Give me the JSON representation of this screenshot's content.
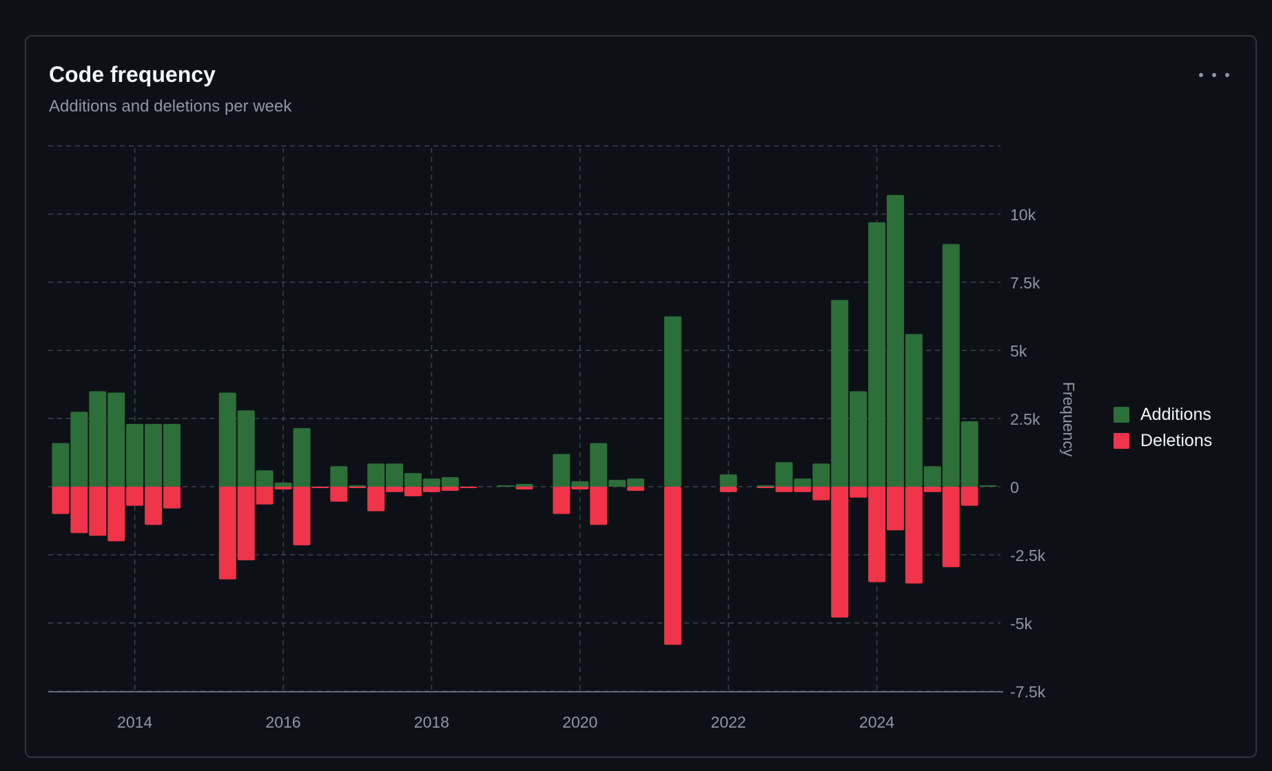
{
  "header": {
    "title": "Code frequency",
    "subtitle": "Additions and deletions per week",
    "more_icon": "kebab-horizontal-icon"
  },
  "colors": {
    "additions": "#2d6f39",
    "deletions": "#f0344a",
    "grid": "#3d444d",
    "tick_text": "#9198a1",
    "background": "#0d1117"
  },
  "chart_data": {
    "type": "bar",
    "title": "Code frequency",
    "subtitle": "Additions and deletions per week",
    "xlabel": "",
    "ylabel": "Frequency",
    "x_ticks": [
      "2014",
      "2016",
      "2018",
      "2020",
      "2022",
      "2024"
    ],
    "y_ticks": [
      {
        "value": 10000,
        "label": "10k"
      },
      {
        "value": 7500,
        "label": "7.5k"
      },
      {
        "value": 5000,
        "label": "5k"
      },
      {
        "value": 2500,
        "label": "2.5k"
      },
      {
        "value": 0,
        "label": "0"
      },
      {
        "value": -2500,
        "label": "-2.5k"
      },
      {
        "value": -5000,
        "label": "-5k"
      },
      {
        "value": -7500,
        "label": "-7.5k"
      }
    ],
    "ylim": [
      -7500,
      12500
    ],
    "xlim": [
      "2012-11",
      "2025-09"
    ],
    "grid": true,
    "legend_position": "right",
    "x": [
      "2013-01",
      "2013-04",
      "2013-07",
      "2013-10",
      "2014-01",
      "2014-04",
      "2014-07",
      "2015-01",
      "2015-04",
      "2015-07",
      "2015-10",
      "2016-01",
      "2016-04",
      "2016-07",
      "2016-10",
      "2017-01",
      "2017-04",
      "2017-07",
      "2017-10",
      "2018-01",
      "2018-04",
      "2018-07",
      "2018-10",
      "2019-01",
      "2019-04",
      "2019-07",
      "2019-10",
      "2020-01",
      "2020-04",
      "2020-07",
      "2020-10",
      "2021-01",
      "2021-04",
      "2021-07",
      "2021-10",
      "2022-01",
      "2022-04",
      "2022-07",
      "2022-10",
      "2023-01",
      "2023-04",
      "2023-07",
      "2023-10",
      "2024-01",
      "2024-04",
      "2024-07",
      "2024-10",
      "2025-01",
      "2025-04",
      "2025-07"
    ],
    "series": [
      {
        "name": "Additions",
        "values": [
          1600,
          2750,
          3500,
          3450,
          2300,
          2300,
          2300,
          0,
          3450,
          2800,
          600,
          150,
          2150,
          0,
          750,
          50,
          850,
          850,
          500,
          300,
          350,
          0,
          0,
          50,
          100,
          0,
          1200,
          200,
          1600,
          250,
          300,
          0,
          6250,
          0,
          0,
          450,
          0,
          50,
          900,
          300,
          850,
          6850,
          3500,
          9700,
          10700,
          5600,
          750,
          8900,
          2400,
          50
        ]
      },
      {
        "name": "Deletions",
        "values": [
          -1000,
          -1700,
          -1800,
          -2000,
          -700,
          -1400,
          -800,
          0,
          -3400,
          -2700,
          -650,
          -100,
          -2150,
          -50,
          -550,
          -50,
          -900,
          -200,
          -350,
          -200,
          -150,
          -50,
          0,
          0,
          -100,
          0,
          -1000,
          -100,
          -1400,
          0,
          -150,
          0,
          -5800,
          0,
          0,
          -200,
          0,
          -50,
          -200,
          -200,
          -500,
          -4800,
          -400,
          -3500,
          -1600,
          -3550,
          -200,
          -2950,
          -700,
          0
        ]
      }
    ]
  }
}
